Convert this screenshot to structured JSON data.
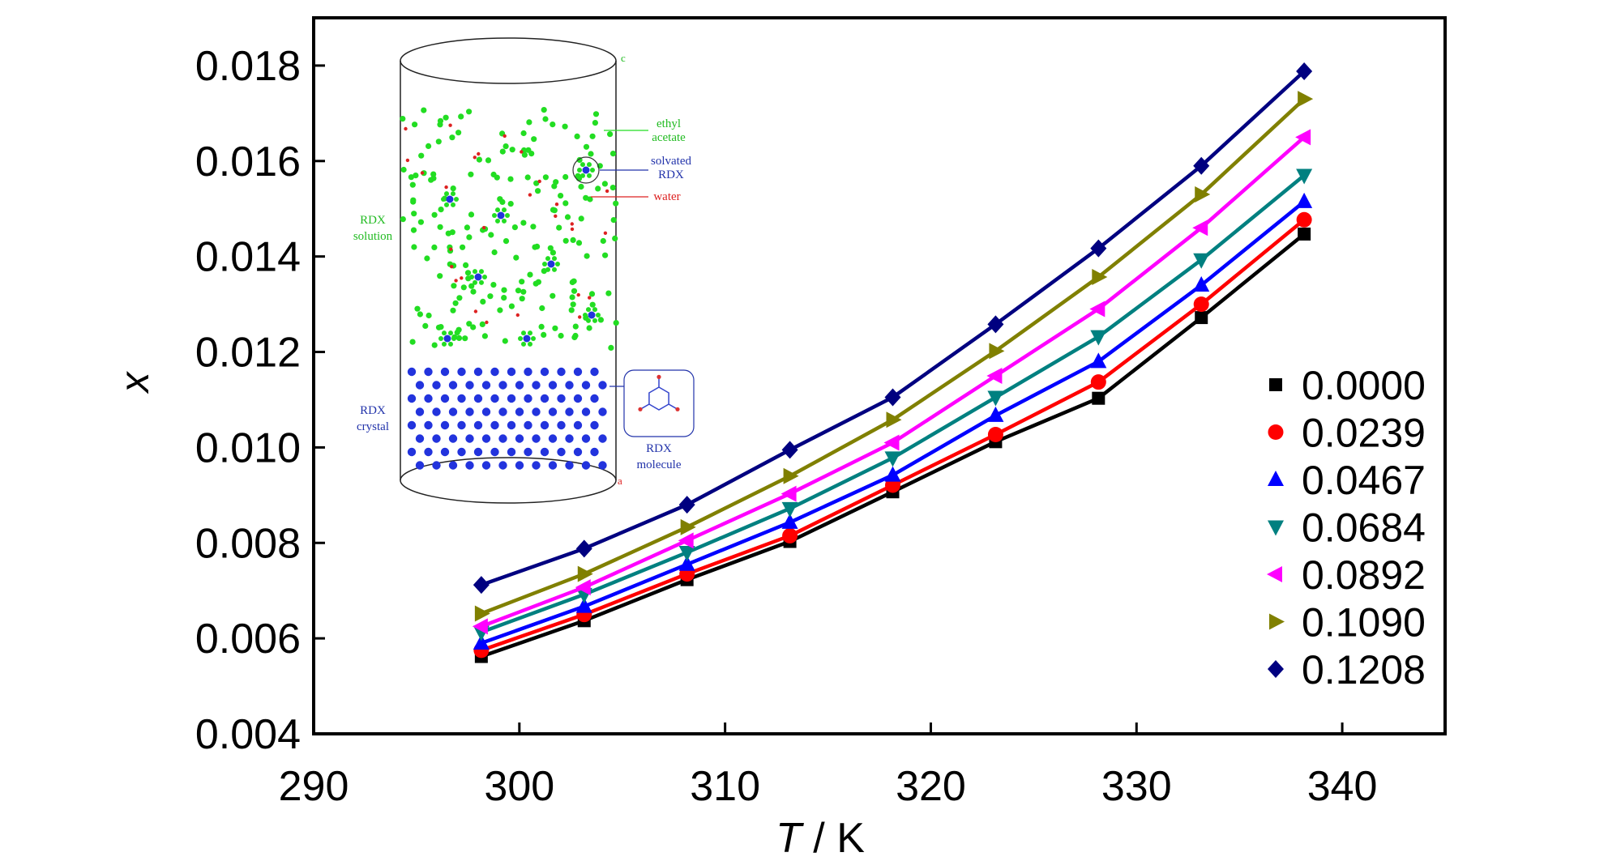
{
  "chart_data": {
    "type": "line",
    "xlabel_italic": "T",
    "xlabel_rest": " / K",
    "ylabel": "x",
    "xlim": [
      290,
      345
    ],
    "ylim": [
      0.004,
      0.019
    ],
    "x_ticks": [
      290,
      300,
      310,
      320,
      330,
      340
    ],
    "x_tick_labels": [
      "290",
      "300",
      "310",
      "320",
      "330",
      "340"
    ],
    "y_ticks": [
      0.004,
      0.006,
      0.008,
      0.01,
      0.012,
      0.014,
      0.016,
      0.018
    ],
    "y_tick_labels": [
      "0.004",
      "0.006",
      "0.008",
      "0.010",
      "0.012",
      "0.014",
      "0.016",
      "0.018"
    ],
    "x": [
      298.15,
      303.15,
      308.15,
      313.15,
      318.15,
      323.15,
      328.15,
      333.15,
      338.15
    ],
    "legend_position": "right",
    "series": [
      {
        "name": "0.0000",
        "marker": "square",
        "color": "#000000",
        "values": [
          0.00562,
          0.00637,
          0.00723,
          0.00803,
          0.00907,
          0.01012,
          0.01103,
          0.01272,
          0.01447
        ]
      },
      {
        "name": "0.0239",
        "marker": "circle",
        "color": "#ff0000",
        "values": [
          0.00575,
          0.0065,
          0.00735,
          0.00815,
          0.00921,
          0.01027,
          0.01137,
          0.013,
          0.01477
        ]
      },
      {
        "name": "0.0467",
        "marker": "triangle-up",
        "color": "#0000ff",
        "values": [
          0.0059,
          0.00667,
          0.00755,
          0.00843,
          0.00942,
          0.01067,
          0.0118,
          0.0134,
          0.01515
        ]
      },
      {
        "name": "0.0684",
        "marker": "triangle-down",
        "color": "#008080",
        "values": [
          0.00613,
          0.00692,
          0.0078,
          0.00872,
          0.00978,
          0.01105,
          0.01232,
          0.01393,
          0.0157
        ]
      },
      {
        "name": "0.0892",
        "marker": "triangle-left",
        "color": "#ff00ff",
        "values": [
          0.00625,
          0.00707,
          0.00805,
          0.00903,
          0.0101,
          0.0115,
          0.0129,
          0.0146,
          0.0165
        ]
      },
      {
        "name": "0.1090",
        "marker": "triangle-right",
        "color": "#808000",
        "values": [
          0.00652,
          0.00735,
          0.00833,
          0.0094,
          0.01058,
          0.01202,
          0.01357,
          0.0153,
          0.0173
        ]
      },
      {
        "name": "0.1208",
        "marker": "diamond",
        "color": "#000080",
        "values": [
          0.00712,
          0.00788,
          0.0088,
          0.00995,
          0.01105,
          0.01258,
          0.01417,
          0.0159,
          0.01788
        ]
      }
    ]
  },
  "inset": {
    "label_ethyl_line1": "ethyl",
    "label_ethyl_line2": "acetate",
    "label_solvated_line1": "solvated",
    "label_solvated_line2": "RDX",
    "label_water": "water",
    "label_solution_line1": "RDX",
    "label_solution_line2": "solution",
    "label_crystal_line1": "RDX",
    "label_crystal_line2": "crystal",
    "label_molecule_line1": "RDX",
    "label_molecule_line2": "molecule",
    "axis_c": "c",
    "axis_a": "a",
    "colors": {
      "solvent": "#22dd22",
      "water": "#dd2222",
      "rdx": "#2233dd"
    }
  }
}
